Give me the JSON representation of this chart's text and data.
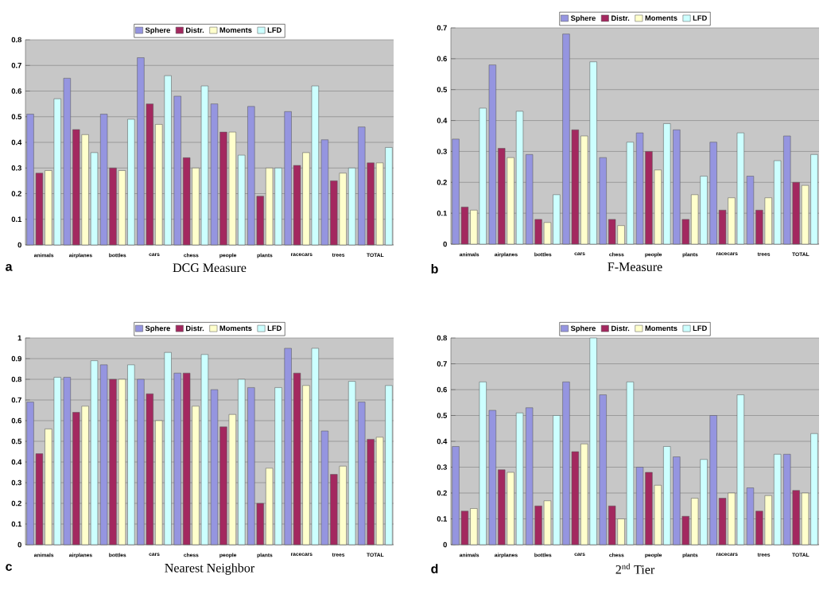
{
  "chart_data": [
    {
      "type": "bar",
      "title": "DCG Measure",
      "annotations": [
        "a"
      ],
      "categories": [
        "animals",
        "airplanes",
        "bottles",
        "cars",
        "chess",
        "people",
        "plants",
        "racecars",
        "trees",
        "TOTAL"
      ],
      "series": [
        {
          "name": "Sphere",
          "color": "#9595e0",
          "values": [
            0.51,
            0.65,
            0.51,
            0.73,
            0.58,
            0.55,
            0.54,
            0.52,
            0.41,
            0.46
          ]
        },
        {
          "name": "Distr.",
          "color": "#a3285f",
          "values": [
            0.28,
            0.45,
            0.3,
            0.55,
            0.34,
            0.44,
            0.19,
            0.31,
            0.25,
            0.32
          ]
        },
        {
          "name": "Moments",
          "color": "#ffffcc",
          "values": [
            0.29,
            0.43,
            0.29,
            0.47,
            0.3,
            0.44,
            0.3,
            0.36,
            0.28,
            0.32
          ]
        },
        {
          "name": "LFD",
          "color": "#ccffff",
          "values": [
            0.57,
            0.36,
            0.49,
            0.66,
            0.62,
            0.35,
            0.3,
            0.62,
            0.3,
            0.38
          ]
        }
      ],
      "ylim": [
        0,
        0.8
      ],
      "yticks": [
        0,
        0.1,
        0.2,
        0.3,
        0.4,
        0.5,
        0.6,
        0.7,
        0.8
      ],
      "grid": "y",
      "legend": "top"
    },
    {
      "type": "bar",
      "title": "F-Measure",
      "annotations": [
        "b"
      ],
      "categories": [
        "animals",
        "airplanes",
        "bottles",
        "cars",
        "chess",
        "people",
        "plants",
        "racecars",
        "trees",
        "TOTAL"
      ],
      "series": [
        {
          "name": "Sphere",
          "color": "#9595e0",
          "values": [
            0.34,
            0.58,
            0.29,
            0.68,
            0.28,
            0.36,
            0.37,
            0.33,
            0.22,
            0.35
          ]
        },
        {
          "name": "Distr.",
          "color": "#a3285f",
          "values": [
            0.12,
            0.31,
            0.08,
            0.37,
            0.08,
            0.3,
            0.08,
            0.11,
            0.11,
            0.2
          ]
        },
        {
          "name": "Moments",
          "color": "#ffffcc",
          "values": [
            0.11,
            0.28,
            0.07,
            0.35,
            0.06,
            0.24,
            0.16,
            0.15,
            0.15,
            0.19
          ]
        },
        {
          "name": "LFD",
          "color": "#ccffff",
          "values": [
            0.44,
            0.43,
            0.16,
            0.59,
            0.33,
            0.39,
            0.22,
            0.36,
            0.27,
            0.29
          ]
        }
      ],
      "ylim": [
        0,
        0.7
      ],
      "yticks": [
        0,
        0.1,
        0.2,
        0.3,
        0.4,
        0.5,
        0.6,
        0.7
      ],
      "grid": "y",
      "legend": "top"
    },
    {
      "type": "bar",
      "title": "Nearest Neighbor",
      "annotations": [
        "c"
      ],
      "categories": [
        "animals",
        "airplanes",
        "bottles",
        "cars",
        "chess",
        "people",
        "plants",
        "racecars",
        "trees",
        "TOTAL"
      ],
      "series": [
        {
          "name": "Sphere",
          "color": "#9595e0",
          "values": [
            0.69,
            0.81,
            0.87,
            0.8,
            0.83,
            0.75,
            0.76,
            0.95,
            0.55,
            0.69
          ]
        },
        {
          "name": "Distr.",
          "color": "#a3285f",
          "values": [
            0.44,
            0.64,
            0.8,
            0.73,
            0.83,
            0.57,
            0.2,
            0.83,
            0.34,
            0.51
          ]
        },
        {
          "name": "Moments",
          "color": "#ffffcc",
          "values": [
            0.56,
            0.67,
            0.8,
            0.6,
            0.67,
            0.63,
            0.37,
            0.77,
            0.38,
            0.52
          ]
        },
        {
          "name": "LFD",
          "color": "#ccffff",
          "values": [
            0.81,
            0.89,
            0.87,
            0.93,
            0.92,
            0.8,
            0.76,
            0.95,
            0.79,
            0.77
          ]
        }
      ],
      "ylim": [
        0,
        1
      ],
      "yticks": [
        0,
        0.1,
        0.2,
        0.3,
        0.4,
        0.5,
        0.6,
        0.7,
        0.8,
        0.9,
        1
      ],
      "grid": "y",
      "legend": "top"
    },
    {
      "type": "bar",
      "title": "2$^{nd}$ Tier",
      "annotations": [
        "d"
      ],
      "categories": [
        "animals",
        "airplanes",
        "bottles",
        "cars",
        "chess",
        "people",
        "plants",
        "racecars",
        "trees",
        "TOTAL"
      ],
      "series": [
        {
          "name": "Sphere",
          "color": "#9595e0",
          "values": [
            0.38,
            0.52,
            0.53,
            0.63,
            0.58,
            0.3,
            0.34,
            0.5,
            0.22,
            0.35
          ]
        },
        {
          "name": "Distr.",
          "color": "#a3285f",
          "values": [
            0.13,
            0.29,
            0.15,
            0.36,
            0.15,
            0.28,
            0.11,
            0.18,
            0.13,
            0.21
          ]
        },
        {
          "name": "Moments",
          "color": "#ffffcc",
          "values": [
            0.14,
            0.28,
            0.17,
            0.39,
            0.1,
            0.23,
            0.18,
            0.2,
            0.19,
            0.2
          ]
        },
        {
          "name": "LFD",
          "color": "#ccffff",
          "values": [
            0.63,
            0.51,
            0.5,
            0.8,
            0.63,
            0.38,
            0.33,
            0.58,
            0.35,
            0.43
          ]
        }
      ],
      "ylim": [
        0,
        0.8
      ],
      "yticks": [
        0,
        0.1,
        0.2,
        0.3,
        0.4,
        0.5,
        0.6,
        0.7,
        0.8
      ],
      "grid": "y",
      "legend": "top"
    }
  ]
}
